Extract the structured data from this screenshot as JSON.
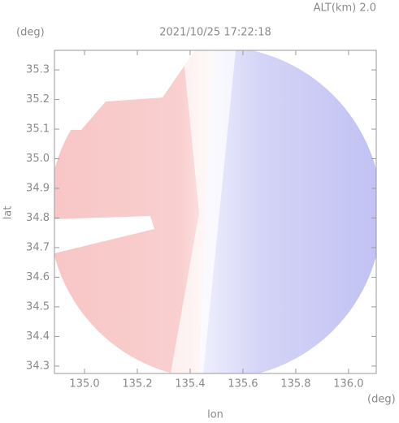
{
  "chart_data": {
    "type": "map",
    "title": "2021/10/25 17:22:18",
    "subtitle": "ALT(km) 2.0",
    "xlabel": "lon",
    "ylabel": "lat",
    "xunit": "(deg)",
    "yunit": "(deg)",
    "xlim": [
      134.886,
      136.105
    ],
    "ylim": [
      34.275,
      35.366
    ],
    "xticks": [
      {
        "value": 135,
        "label": "135.0"
      },
      135.2,
      135.4,
      135.6,
      135.8,
      {
        "value": 136,
        "label": "136.0"
      }
    ],
    "yticks": [
      {
        "value": 34.3,
        "label": "34.3"
      },
      34.4,
      34.5,
      34.6,
      34.7,
      34.8,
      34.9,
      {
        "value": 35,
        "label": "35.0"
      },
      35.1,
      35.2,
      35.3
    ]
  }
}
